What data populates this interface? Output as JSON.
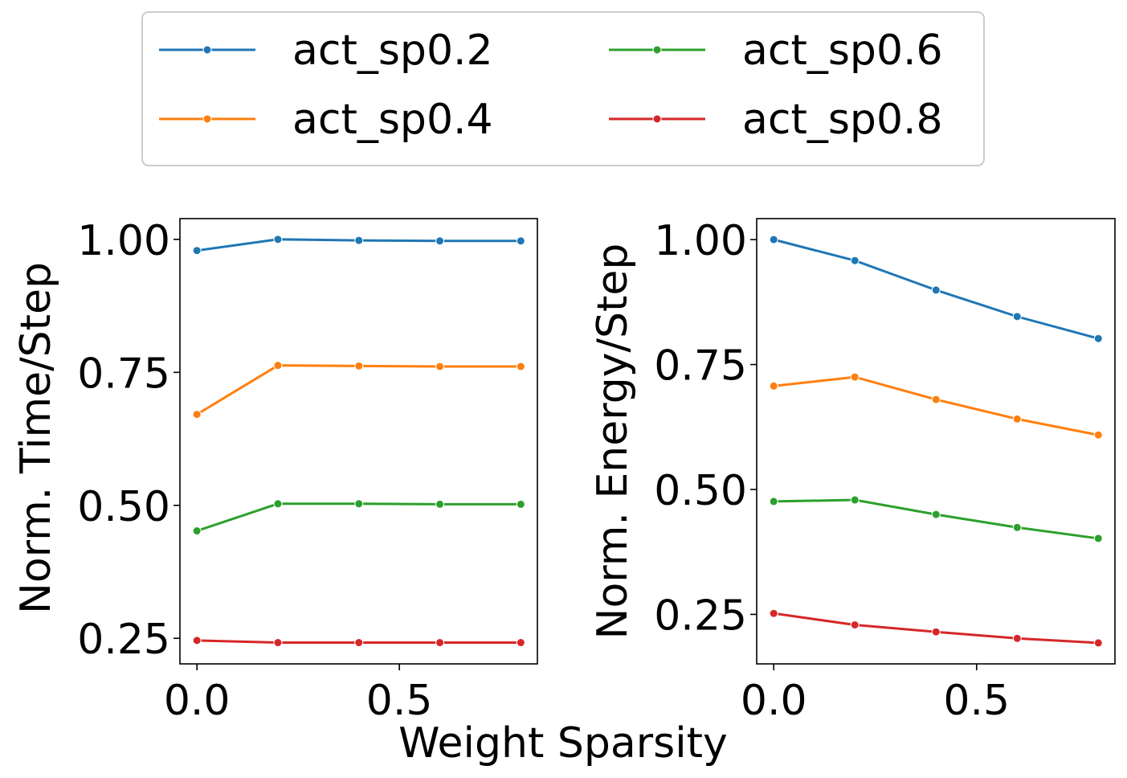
{
  "chart_data": [
    {
      "type": "line",
      "ylabel": "Norm. Time/Step",
      "x": [
        0.0,
        0.2,
        0.4,
        0.6,
        0.8
      ],
      "xlim": [
        -0.042,
        0.841
      ],
      "ylim": [
        0.202,
        1.039
      ],
      "xticks": [
        {
          "v": 0.0,
          "label": "0.0"
        },
        {
          "v": 0.5,
          "label": "0.5"
        }
      ],
      "yticks": [
        {
          "v": 1.0,
          "label": "1.00"
        },
        {
          "v": 0.75,
          "label": "0.75"
        },
        {
          "v": 0.5,
          "label": "0.50"
        },
        {
          "v": 0.25,
          "label": "0.25"
        }
      ],
      "grid": false,
      "series": [
        {
          "name": "act_sp0.2",
          "color": "#1f77b4",
          "values": [
            0.979,
            1.0,
            0.998,
            0.997,
            0.997
          ]
        },
        {
          "name": "act_sp0.4",
          "color": "#ff7f0e",
          "values": [
            0.671,
            0.763,
            0.762,
            0.761,
            0.761
          ]
        },
        {
          "name": "act_sp0.6",
          "color": "#2ca02c",
          "values": [
            0.452,
            0.503,
            0.503,
            0.502,
            0.502
          ]
        },
        {
          "name": "act_sp0.8",
          "color": "#d62728",
          "values": [
            0.246,
            0.242,
            0.242,
            0.242,
            0.242
          ]
        }
      ]
    },
    {
      "type": "line",
      "ylabel": "Norm. Energy/Step",
      "x": [
        0.0,
        0.2,
        0.4,
        0.6,
        0.8
      ],
      "xlim": [
        -0.042,
        0.841
      ],
      "ylim": [
        0.151,
        1.042
      ],
      "xticks": [
        {
          "v": 0.0,
          "label": "0.0"
        },
        {
          "v": 0.5,
          "label": "0.5"
        }
      ],
      "yticks": [
        {
          "v": 1.0,
          "label": "1.00"
        },
        {
          "v": 0.75,
          "label": "0.75"
        },
        {
          "v": 0.5,
          "label": "0.50"
        },
        {
          "v": 0.25,
          "label": "0.25"
        }
      ],
      "grid": false,
      "series": [
        {
          "name": "act_sp0.2",
          "color": "#1f77b4",
          "values": [
            1.0,
            0.958,
            0.899,
            0.846,
            0.802
          ]
        },
        {
          "name": "act_sp0.4",
          "color": "#ff7f0e",
          "values": [
            0.707,
            0.725,
            0.68,
            0.641,
            0.609
          ]
        },
        {
          "name": "act_sp0.6",
          "color": "#2ca02c",
          "values": [
            0.476,
            0.479,
            0.45,
            0.424,
            0.402
          ]
        },
        {
          "name": "act_sp0.8",
          "color": "#d62728",
          "values": [
            0.252,
            0.229,
            0.215,
            0.202,
            0.193
          ]
        }
      ]
    }
  ],
  "shared_xlabel": "Weight Sparsity",
  "legend": {
    "placement": "top-center",
    "columns": 2,
    "entries": [
      {
        "label": "act_sp0.2",
        "color": "#1f77b4"
      },
      {
        "label": "act_sp0.4",
        "color": "#ff7f0e"
      },
      {
        "label": "act_sp0.6",
        "color": "#2ca02c"
      },
      {
        "label": "act_sp0.8",
        "color": "#d62728"
      }
    ]
  }
}
